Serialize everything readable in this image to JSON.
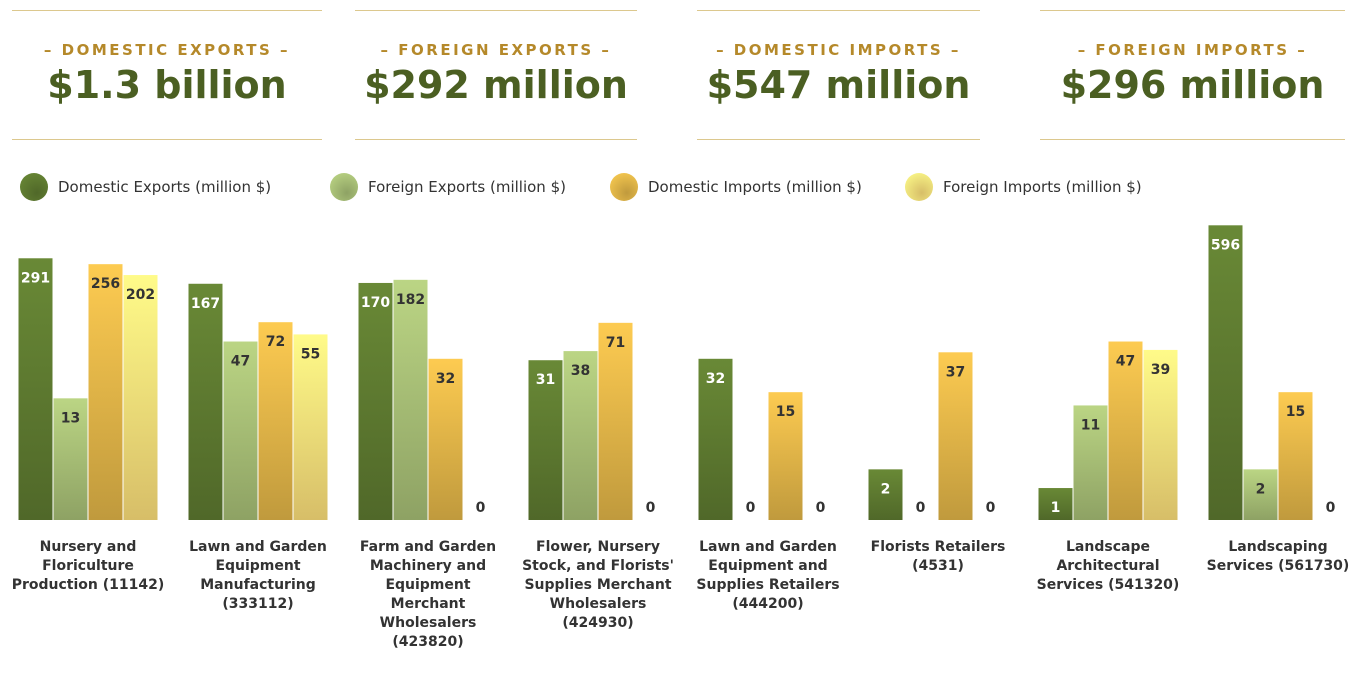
{
  "kpis": [
    {
      "label": "– DOMESTIC EXPORTS –",
      "value": "$1.3 billion"
    },
    {
      "label": "– FOREIGN EXPORTS –",
      "value": "$292 million"
    },
    {
      "label": "– DOMESTIC IMPORTS –",
      "value": "$547 million"
    },
    {
      "label": "– FOREIGN IMPORTS –",
      "value": "$296 million"
    }
  ],
  "chart_data": {
    "type": "bar",
    "yscale": "symlog",
    "ylim": [
      0,
      600
    ],
    "categories": [
      "Nursery and Floriculture Production (11142)",
      "Lawn and Garden Equipment Manufacturing (333112)",
      "Farm and Garden Machinery and Equipment Merchant Wholesalers (423820)",
      "Flower, Nursery Stock, and Florists' Supplies Merchant Wholesalers (424930)",
      "Lawn and Garden Equipment and Supplies Retailers (444200)",
      "Florists Retailers (4531)",
      "Landscape Architectural Services (541320)",
      "Landscaping Services (561730)"
    ],
    "series": [
      {
        "name": "Domestic Exports (million $)",
        "color": "#5e7a30",
        "values": [
          291,
          167,
          170,
          31,
          32,
          2,
          1,
          596
        ]
      },
      {
        "name": "Foreign Exports (million $)",
        "color": "#a7be76",
        "values": [
          13,
          47,
          182,
          38,
          0,
          0,
          11,
          2
        ]
      },
      {
        "name": "Domestic Imports (million $)",
        "color": "#e2b548",
        "values": [
          256,
          72,
          32,
          71,
          15,
          37,
          47,
          15
        ]
      },
      {
        "name": "Foreign Imports (million $)",
        "color": "#fde07a",
        "values": [
          202,
          55,
          0,
          0,
          0,
          0,
          39,
          0
        ]
      }
    ]
  }
}
